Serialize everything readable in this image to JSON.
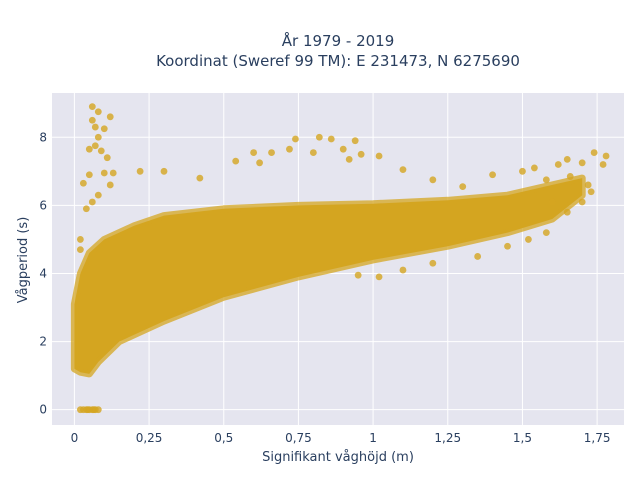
{
  "chart_data": {
    "type": "scatter",
    "title": "År 1979 - 2019",
    "subtitle": "Koordinat (Sweref 99 TM): E 231473, N 6275690",
    "xlabel": "Signifikant våghöjd (m)",
    "ylabel": "Vågperiod (s)",
    "xlim": [
      -0.075,
      1.84
    ],
    "ylim": [
      -0.45,
      9.3
    ],
    "x_ticks": [
      0,
      0.25,
      0.5,
      0.75,
      1,
      1.25,
      1.5,
      1.75
    ],
    "x_tick_labels": [
      "0",
      "0,25",
      "0,5",
      "0,75",
      "1",
      "1,25",
      "1,5",
      "1,75"
    ],
    "y_ticks": [
      0,
      2,
      4,
      6,
      8
    ],
    "y_tick_labels": [
      "0",
      "2",
      "4",
      "6",
      "8"
    ],
    "grid": true,
    "legend": "none",
    "marker_color": "#d4a520",
    "plot_background": "#e5e5ef",
    "series": [
      {
        "points": [
          [
            0.06,
            8.9
          ],
          [
            0.08,
            8.75
          ],
          [
            0.06,
            8.5
          ],
          [
            0.12,
            8.6
          ],
          [
            0.07,
            8.3
          ],
          [
            0.1,
            8.25
          ],
          [
            0.08,
            8.0
          ],
          [
            0.05,
            7.65
          ],
          [
            0.07,
            7.75
          ],
          [
            0.09,
            7.6
          ],
          [
            0.11,
            7.4
          ],
          [
            0.05,
            6.9
          ],
          [
            0.1,
            6.95
          ],
          [
            0.03,
            6.65
          ],
          [
            0.13,
            6.95
          ],
          [
            0.12,
            6.6
          ],
          [
            0.08,
            6.3
          ],
          [
            0.06,
            6.1
          ],
          [
            0.04,
            5.9
          ],
          [
            0.02,
            5.0
          ],
          [
            0.02,
            4.7
          ],
          [
            0.22,
            7.0
          ],
          [
            0.3,
            7.0
          ],
          [
            0.42,
            6.8
          ],
          [
            0.54,
            7.3
          ],
          [
            0.6,
            7.55
          ],
          [
            0.62,
            7.25
          ],
          [
            0.66,
            7.55
          ],
          [
            0.72,
            7.65
          ],
          [
            0.74,
            7.95
          ],
          [
            0.8,
            7.55
          ],
          [
            0.82,
            8.0
          ],
          [
            0.86,
            7.95
          ],
          [
            0.9,
            7.65
          ],
          [
            0.92,
            7.35
          ],
          [
            0.94,
            7.9
          ],
          [
            0.96,
            7.5
          ],
          [
            1.02,
            7.45
          ],
          [
            1.1,
            7.05
          ],
          [
            1.2,
            6.75
          ],
          [
            1.3,
            6.55
          ],
          [
            1.4,
            6.9
          ],
          [
            1.5,
            7.0
          ],
          [
            1.54,
            7.1
          ],
          [
            1.58,
            6.75
          ],
          [
            1.62,
            7.2
          ],
          [
            1.65,
            7.35
          ],
          [
            1.7,
            7.25
          ],
          [
            1.74,
            7.55
          ],
          [
            1.77,
            7.2
          ],
          [
            1.78,
            7.45
          ],
          [
            1.73,
            6.4
          ],
          [
            1.66,
            6.85
          ],
          [
            1.6,
            6.1
          ],
          [
            0.95,
            3.95
          ],
          [
            1.02,
            3.9
          ],
          [
            1.1,
            4.1
          ],
          [
            1.2,
            4.3
          ],
          [
            1.35,
            4.5
          ],
          [
            1.45,
            4.8
          ],
          [
            1.52,
            5.0
          ],
          [
            1.58,
            5.2
          ],
          [
            1.65,
            5.8
          ],
          [
            1.7,
            6.1
          ],
          [
            1.72,
            6.6
          ],
          [
            0.02,
            0.0
          ],
          [
            0.03,
            0.0
          ],
          [
            0.04,
            0.0
          ],
          [
            0.05,
            0.0
          ],
          [
            0.06,
            0.0
          ],
          [
            0.07,
            0.0
          ],
          [
            0.08,
            0.0
          ],
          [
            0.045,
            0.0
          ],
          [
            0.065,
            0.0
          ]
        ]
      }
    ]
  }
}
